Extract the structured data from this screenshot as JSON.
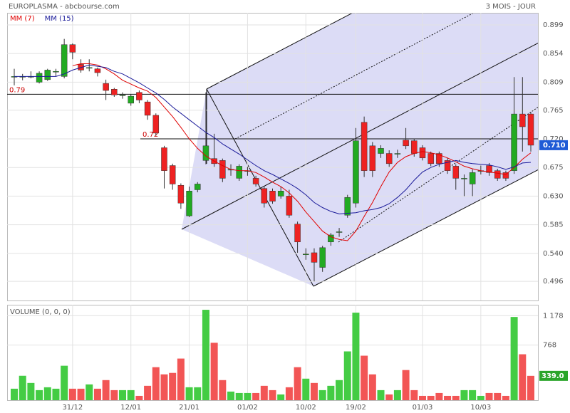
{
  "chart_data": {
    "type": "candlestick",
    "title": "EUROPLASMA - abcbourse.com",
    "subtitle": "3 MOIS - JOUR",
    "categories": [
      null,
      null,
      null,
      null,
      null,
      null,
      null,
      "31/12",
      null,
      null,
      null,
      null,
      null,
      null,
      "12/01",
      null,
      null,
      null,
      null,
      null,
      null,
      "21/01",
      null,
      null,
      null,
      null,
      null,
      null,
      "01/02",
      null,
      null,
      null,
      null,
      null,
      null,
      "10/02",
      null,
      null,
      null,
      null,
      null,
      "19/02",
      null,
      null,
      null,
      null,
      null,
      null,
      null,
      "01/03",
      null,
      null,
      null,
      null,
      null,
      null,
      "10/03",
      null,
      null,
      null,
      null,
      null,
      null
    ],
    "open": [
      0.818,
      0.818,
      0.818,
      0.809,
      0.813,
      0.826,
      0.818,
      0.868,
      0.837,
      0.832,
      0.83,
      0.807,
      0.798,
      0.789,
      0.776,
      0.793,
      0.778,
      0.757,
      0.706,
      0.678,
      0.647,
      0.599,
      0.64,
      0.686,
      0.689,
      0.686,
      0.672,
      0.658,
      0.67,
      0.658,
      0.642,
      0.638,
      0.63,
      0.63,
      0.586,
      0.539,
      0.541,
      0.518,
      0.558,
      0.574,
      0.6,
      0.619,
      0.746,
      0.709,
      0.697,
      0.697,
      0.697,
      0.718,
      0.717,
      0.706,
      0.697,
      0.697,
      0.686,
      0.677,
      0.658,
      0.649,
      0.67,
      0.678,
      0.67,
      0.667,
      0.67,
      0.759,
      0.759
    ],
    "high": [
      0.83,
      0.822,
      0.826,
      0.826,
      0.83,
      0.83,
      0.877,
      0.87,
      0.845,
      0.845,
      0.832,
      0.813,
      0.8,
      0.793,
      0.79,
      0.796,
      0.781,
      0.76,
      0.709,
      0.681,
      0.65,
      0.645,
      0.652,
      0.793,
      0.728,
      0.689,
      0.68,
      0.68,
      0.676,
      0.662,
      0.646,
      0.642,
      0.645,
      0.64,
      0.59,
      0.548,
      0.548,
      0.552,
      0.572,
      0.58,
      0.632,
      0.737,
      0.755,
      0.715,
      0.71,
      0.702,
      0.703,
      0.737,
      0.72,
      0.71,
      0.7,
      0.7,
      0.69,
      0.68,
      0.664,
      0.672,
      0.678,
      0.682,
      0.673,
      0.67,
      0.817,
      0.817,
      0.762
    ],
    "low": [
      0.804,
      0.812,
      0.815,
      0.807,
      0.811,
      0.818,
      0.815,
      0.845,
      0.824,
      0.826,
      0.818,
      0.781,
      0.786,
      0.783,
      0.772,
      0.776,
      0.75,
      0.725,
      0.642,
      0.64,
      0.61,
      0.597,
      0.636,
      0.68,
      0.676,
      0.652,
      0.662,
      0.654,
      0.662,
      0.645,
      0.612,
      0.618,
      0.626,
      0.596,
      0.541,
      0.53,
      0.496,
      0.511,
      0.552,
      0.566,
      0.596,
      0.612,
      0.66,
      0.66,
      0.69,
      0.676,
      0.69,
      0.704,
      0.692,
      0.686,
      0.677,
      0.676,
      0.665,
      0.64,
      0.63,
      0.63,
      0.664,
      0.662,
      0.654,
      0.654,
      0.665,
      0.7,
      0.7
    ],
    "close": [
      0.818,
      0.818,
      0.818,
      0.823,
      0.828,
      0.826,
      0.868,
      0.856,
      0.828,
      0.832,
      0.824,
      0.796,
      0.789,
      0.789,
      0.787,
      0.781,
      0.757,
      0.729,
      0.67,
      0.649,
      0.619,
      0.638,
      0.649,
      0.709,
      0.681,
      0.658,
      0.672,
      0.677,
      0.67,
      0.649,
      0.619,
      0.622,
      0.638,
      0.6,
      0.558,
      0.539,
      0.526,
      0.549,
      0.569,
      0.574,
      0.628,
      0.717,
      0.67,
      0.67,
      0.705,
      0.681,
      0.697,
      0.709,
      0.697,
      0.69,
      0.681,
      0.681,
      0.67,
      0.658,
      0.658,
      0.667,
      0.67,
      0.667,
      0.658,
      0.658,
      0.759,
      0.739,
      0.71
    ],
    "up_color": "#22aa22",
    "down_color": "#ee2222",
    "series": [
      {
        "name": "MM (7)",
        "color": "#e00000",
        "values": [
          null,
          null,
          null,
          null,
          null,
          null,
          null,
          0.835,
          0.838,
          0.838,
          0.836,
          0.83,
          0.822,
          0.812,
          0.806,
          0.8,
          0.795,
          0.785,
          0.77,
          0.755,
          0.738,
          0.72,
          0.705,
          0.693,
          0.685,
          0.678,
          0.672,
          0.67,
          0.67,
          0.667,
          0.66,
          0.652,
          0.645,
          0.635,
          0.622,
          0.605,
          0.59,
          0.575,
          0.566,
          0.562,
          0.56,
          0.575,
          0.598,
          0.62,
          0.645,
          0.668,
          0.683,
          0.692,
          0.697,
          0.7,
          0.698,
          0.695,
          0.69,
          0.684,
          0.677,
          0.673,
          0.67,
          0.668,
          0.666,
          0.664,
          0.675,
          0.688,
          0.698
        ]
      },
      {
        "name": "MM (15)",
        "color": "#1a1a99",
        "values": [
          0.818,
          0.818,
          0.818,
          0.818,
          0.818,
          0.818,
          0.822,
          0.828,
          0.832,
          0.836,
          0.834,
          0.832,
          0.826,
          0.822,
          0.815,
          0.808,
          0.8,
          0.792,
          0.782,
          0.77,
          0.76,
          0.75,
          0.74,
          0.73,
          0.722,
          0.712,
          0.704,
          0.696,
          0.687,
          0.678,
          0.67,
          0.664,
          0.657,
          0.65,
          0.642,
          0.632,
          0.62,
          0.612,
          0.606,
          0.602,
          0.603,
          0.604,
          0.607,
          0.609,
          0.612,
          0.618,
          0.628,
          0.64,
          0.655,
          0.668,
          0.675,
          0.68,
          0.683,
          0.686,
          0.683,
          0.681,
          0.68,
          0.679,
          0.676,
          0.672,
          0.676,
          0.682,
          0.683
        ]
      }
    ],
    "ylim": [
      0.466,
      0.918
    ],
    "yticks": [
      0.496,
      {
        "value": 0.54,
        "label": "0.540"
      },
      0.585,
      {
        "value": 0.63,
        "label": "0.630"
      },
      0.675,
      {
        "value": 0.72,
        "label": "0.720"
      },
      0.765,
      0.809,
      0.854,
      0.899
    ],
    "grid": true,
    "annotations": [
      {
        "value": 0.79,
        "label": "0.79"
      },
      {
        "value": 0.72,
        "label": "0.72"
      }
    ],
    "last_price": {
      "value": 0.71,
      "label": "0.710"
    },
    "volume": {
      "title": "VOLUME (0, 0, 0)",
      "values": [
        160,
        340,
        240,
        140,
        180,
        160,
        480,
        160,
        160,
        220,
        160,
        280,
        140,
        140,
        140,
        60,
        200,
        460,
        360,
        380,
        580,
        180,
        180,
        1260,
        800,
        280,
        120,
        100,
        100,
        100,
        200,
        140,
        80,
        180,
        460,
        300,
        240,
        140,
        200,
        280,
        680,
        1220,
        620,
        360,
        140,
        80,
        140,
        420,
        140,
        60,
        60,
        100,
        60,
        60,
        140,
        140,
        60,
        100,
        100,
        60,
        1160,
        640,
        339
      ],
      "ylim": [
        0,
        1330
      ],
      "yticks": [
        {
          "value": 1178,
          "label": "1 178"
        },
        768
      ],
      "last": {
        "value": 339,
        "label": "339.0"
      }
    }
  }
}
